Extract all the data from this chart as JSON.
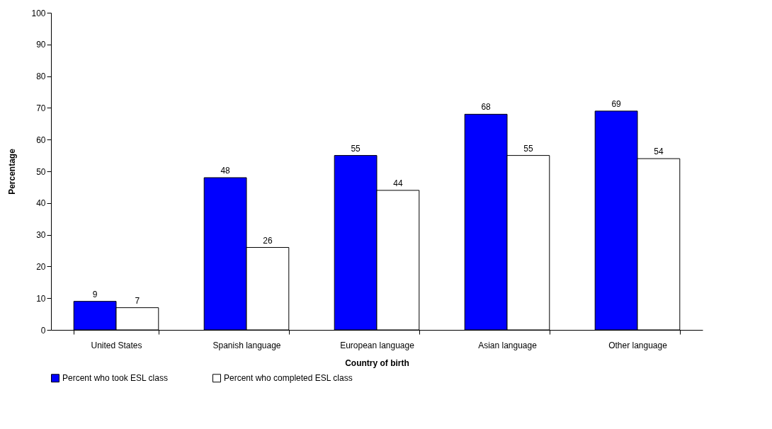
{
  "chart_data": {
    "type": "bar",
    "xlabel": "Country of birth",
    "ylabel": "Percentage",
    "categories": [
      "United States",
      "Spanish language",
      "European language",
      "Asian language",
      "Other language"
    ],
    "series": [
      {
        "name": "Percent who took ESL class",
        "color": "#0000ff",
        "values": [
          9,
          48,
          55,
          68,
          69
        ]
      },
      {
        "name": "Percent who completed ESL class",
        "color": "#ffffff",
        "values": [
          7,
          26,
          44,
          55,
          54
        ]
      }
    ],
    "ylim": [
      0,
      100
    ],
    "yticks": [
      0,
      10,
      20,
      30,
      40,
      50,
      60,
      70,
      80,
      90,
      100
    ],
    "data_labels": true,
    "legend": "bottom"
  }
}
